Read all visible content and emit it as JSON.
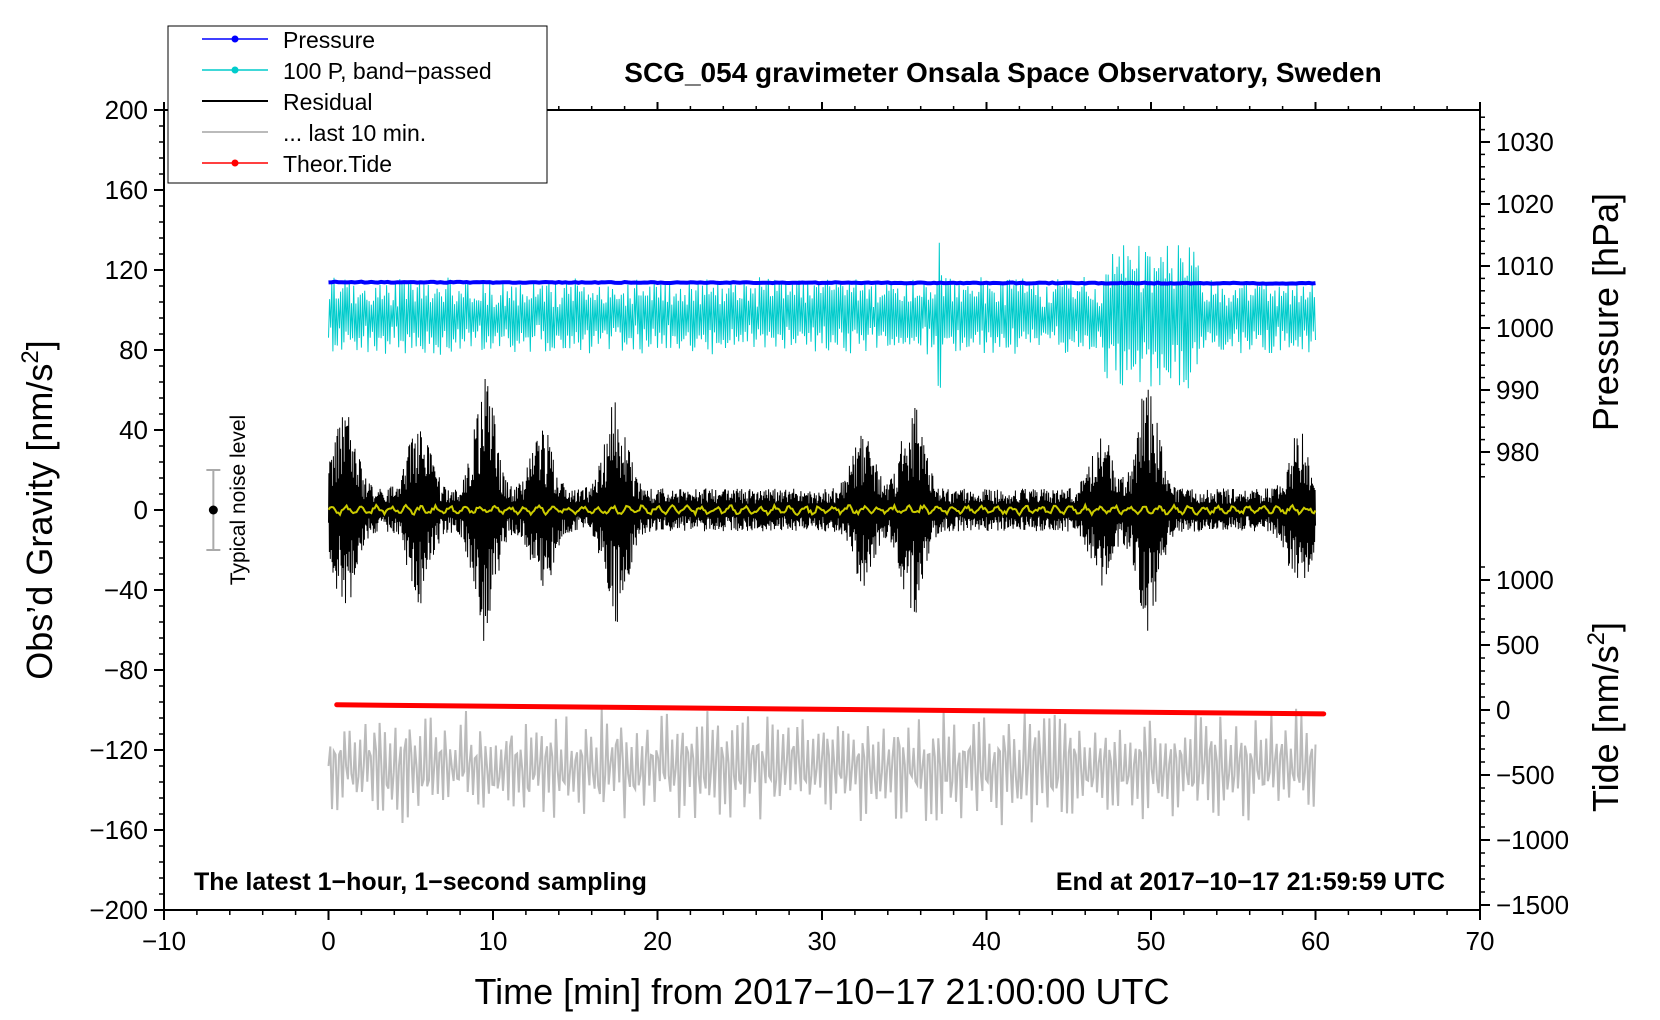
{
  "chart_data": {
    "type": "line",
    "title": "SCG_054 gravimeter Onsala Space Observatory, Sweden",
    "xlabel": "Time [min] from 2017−10−17 21:00:00 UTC",
    "ylabel_left": "Obs’d Gravity [nm/s",
    "ylabel_left_sup": "2",
    "ylabel_left_end": "]",
    "ylabel_right_pressure": "Pressure [hPa]",
    "ylabel_right_tide": "Tide [nm/s",
    "ylabel_right_tide_sup": "2",
    "ylabel_right_tide_end": "]",
    "xlim": [
      -10,
      70
    ],
    "ylim": [
      -200,
      200
    ],
    "x_ticks": [
      -10,
      0,
      10,
      20,
      30,
      40,
      50,
      60,
      70
    ],
    "x_tick_labels": [
      "−10",
      "0",
      "10",
      "20",
      "30",
      "40",
      "50",
      "60",
      "70"
    ],
    "y_ticks": [
      -200,
      -160,
      -120,
      -80,
      -40,
      0,
      40,
      80,
      120,
      160,
      200
    ],
    "y_tick_labels": [
      "−200",
      "−160",
      "−120",
      "−80",
      "−40",
      "0",
      "40",
      "80",
      "120",
      "160",
      "200"
    ],
    "pressure_ticks": [
      980,
      990,
      1000,
      1010,
      1020,
      1030
    ],
    "pressure_tick_labels": [
      "980",
      "990",
      "1000",
      "1010",
      "1020",
      "1030"
    ],
    "tide_ticks": [
      -1500,
      -1000,
      -500,
      0,
      500,
      1000
    ],
    "tide_tick_labels": [
      "−1500",
      "−1000",
      "−500",
      "0",
      "500",
      "1000"
    ],
    "annotation_left": "The latest 1−hour, 1−second sampling",
    "annotation_right": "End at 2017−10−17 21:59:59 UTC",
    "noise_label": "Typical noise level",
    "noise_bar": {
      "x": -7,
      "center": 0,
      "low": -20,
      "high": 20
    },
    "legend": [
      {
        "label": "Pressure",
        "color": "#0000ff",
        "style": "line-dot"
      },
      {
        "label": "100 P, band−passed",
        "color": "#00cccc",
        "style": "line-dot"
      },
      {
        "label": "Residual",
        "color": "#000000",
        "style": "line"
      },
      {
        "label": "... last 10 min.",
        "color": "#bbbbbb",
        "style": "line"
      },
      {
        "label": "Theor.Tide",
        "color": "#ff0000",
        "style": "line-dot"
      }
    ],
    "series": [
      {
        "name": "Pressure",
        "color": "#0000ff",
        "x_range": [
          0,
          60
        ],
        "value_hPa_start": 1007.4,
        "value_hPa_end": 1007.2
      },
      {
        "name": "100 P, band−passed",
        "color": "#00cccc",
        "x_range": [
          0,
          60
        ],
        "mean": 97,
        "amplitude": 15
      },
      {
        "name": "Residual",
        "color": "#000000",
        "x_range": [
          0,
          60
        ],
        "mean": 0,
        "amplitude": 25
      },
      {
        "name": "Residual smoothed",
        "color": "#cccc00",
        "x_range": [
          0,
          60
        ],
        "mean": 0
      },
      {
        "name": "... last 10 min.",
        "color": "#bbbbbb",
        "x_range": [
          0,
          60
        ],
        "mean": -128,
        "amplitude": 20
      },
      {
        "name": "Theor.Tide",
        "color": "#ff0000",
        "x_range": [
          0.5,
          60.5
        ],
        "tide_start": 40,
        "tide_end": -30
      }
    ]
  }
}
